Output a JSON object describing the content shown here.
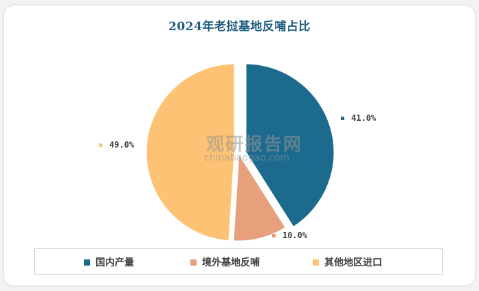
{
  "title": "2024年老挝基地反哺占比",
  "watermark": {
    "cn": "观研报告网",
    "en": "chinabaogao.com"
  },
  "chart_data": {
    "type": "pie",
    "title": "2024年老挝基地反哺占比",
    "slices": [
      {
        "label": "国内产量",
        "value": 41.0,
        "display": "41.0%",
        "color": "#1c6a8e"
      },
      {
        "label": "境外基地反哺",
        "value": 10.0,
        "display": "10.0%",
        "color": "#e89f7c"
      },
      {
        "label": "其他地区进口",
        "value": 49.0,
        "display": "49.0%",
        "color": "#fdc273"
      }
    ],
    "legend_position": "bottom",
    "exploded": true
  }
}
